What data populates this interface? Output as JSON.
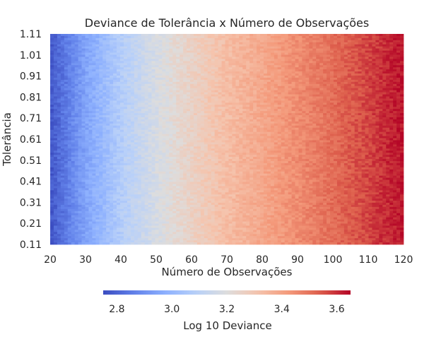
{
  "chart_data": {
    "type": "heatmap",
    "title": "Deviance de Tolerância x Número de Observações",
    "xlabel": "Número de Observações",
    "ylabel": "Tolerância",
    "x_range": [
      20,
      120
    ],
    "y_range": [
      0.11,
      1.11
    ],
    "x_ticks": [
      "20",
      "30",
      "40",
      "50",
      "60",
      "70",
      "80",
      "90",
      "100",
      "110",
      "120"
    ],
    "y_ticks": [
      "1.11",
      "1.01",
      "0.91",
      "0.81",
      "0.71",
      "0.61",
      "0.51",
      "0.41",
      "0.31",
      "0.21",
      "0.11"
    ],
    "colormap": "coolwarm",
    "colors": {
      "low": "#3b4cc0",
      "mid": "#dddddd",
      "high": "#b40426"
    },
    "value_range": [
      2.75,
      3.65
    ],
    "colorbar": {
      "label": "Log 10 Deviance",
      "orientation": "horizontal",
      "ticks": [
        "2.8",
        "3.0",
        "3.2",
        "3.4",
        "3.6"
      ]
    },
    "approx_value_by_x": [
      {
        "x": 20,
        "value": 2.78
      },
      {
        "x": 30,
        "value": 2.95
      },
      {
        "x": 40,
        "value": 3.08
      },
      {
        "x": 50,
        "value": 3.18
      },
      {
        "x": 60,
        "value": 3.26
      },
      {
        "x": 70,
        "value": 3.33
      },
      {
        "x": 80,
        "value": 3.39
      },
      {
        "x": 90,
        "value": 3.45
      },
      {
        "x": 100,
        "value": 3.51
      },
      {
        "x": 110,
        "value": 3.57
      },
      {
        "x": 120,
        "value": 3.63
      }
    ]
  }
}
